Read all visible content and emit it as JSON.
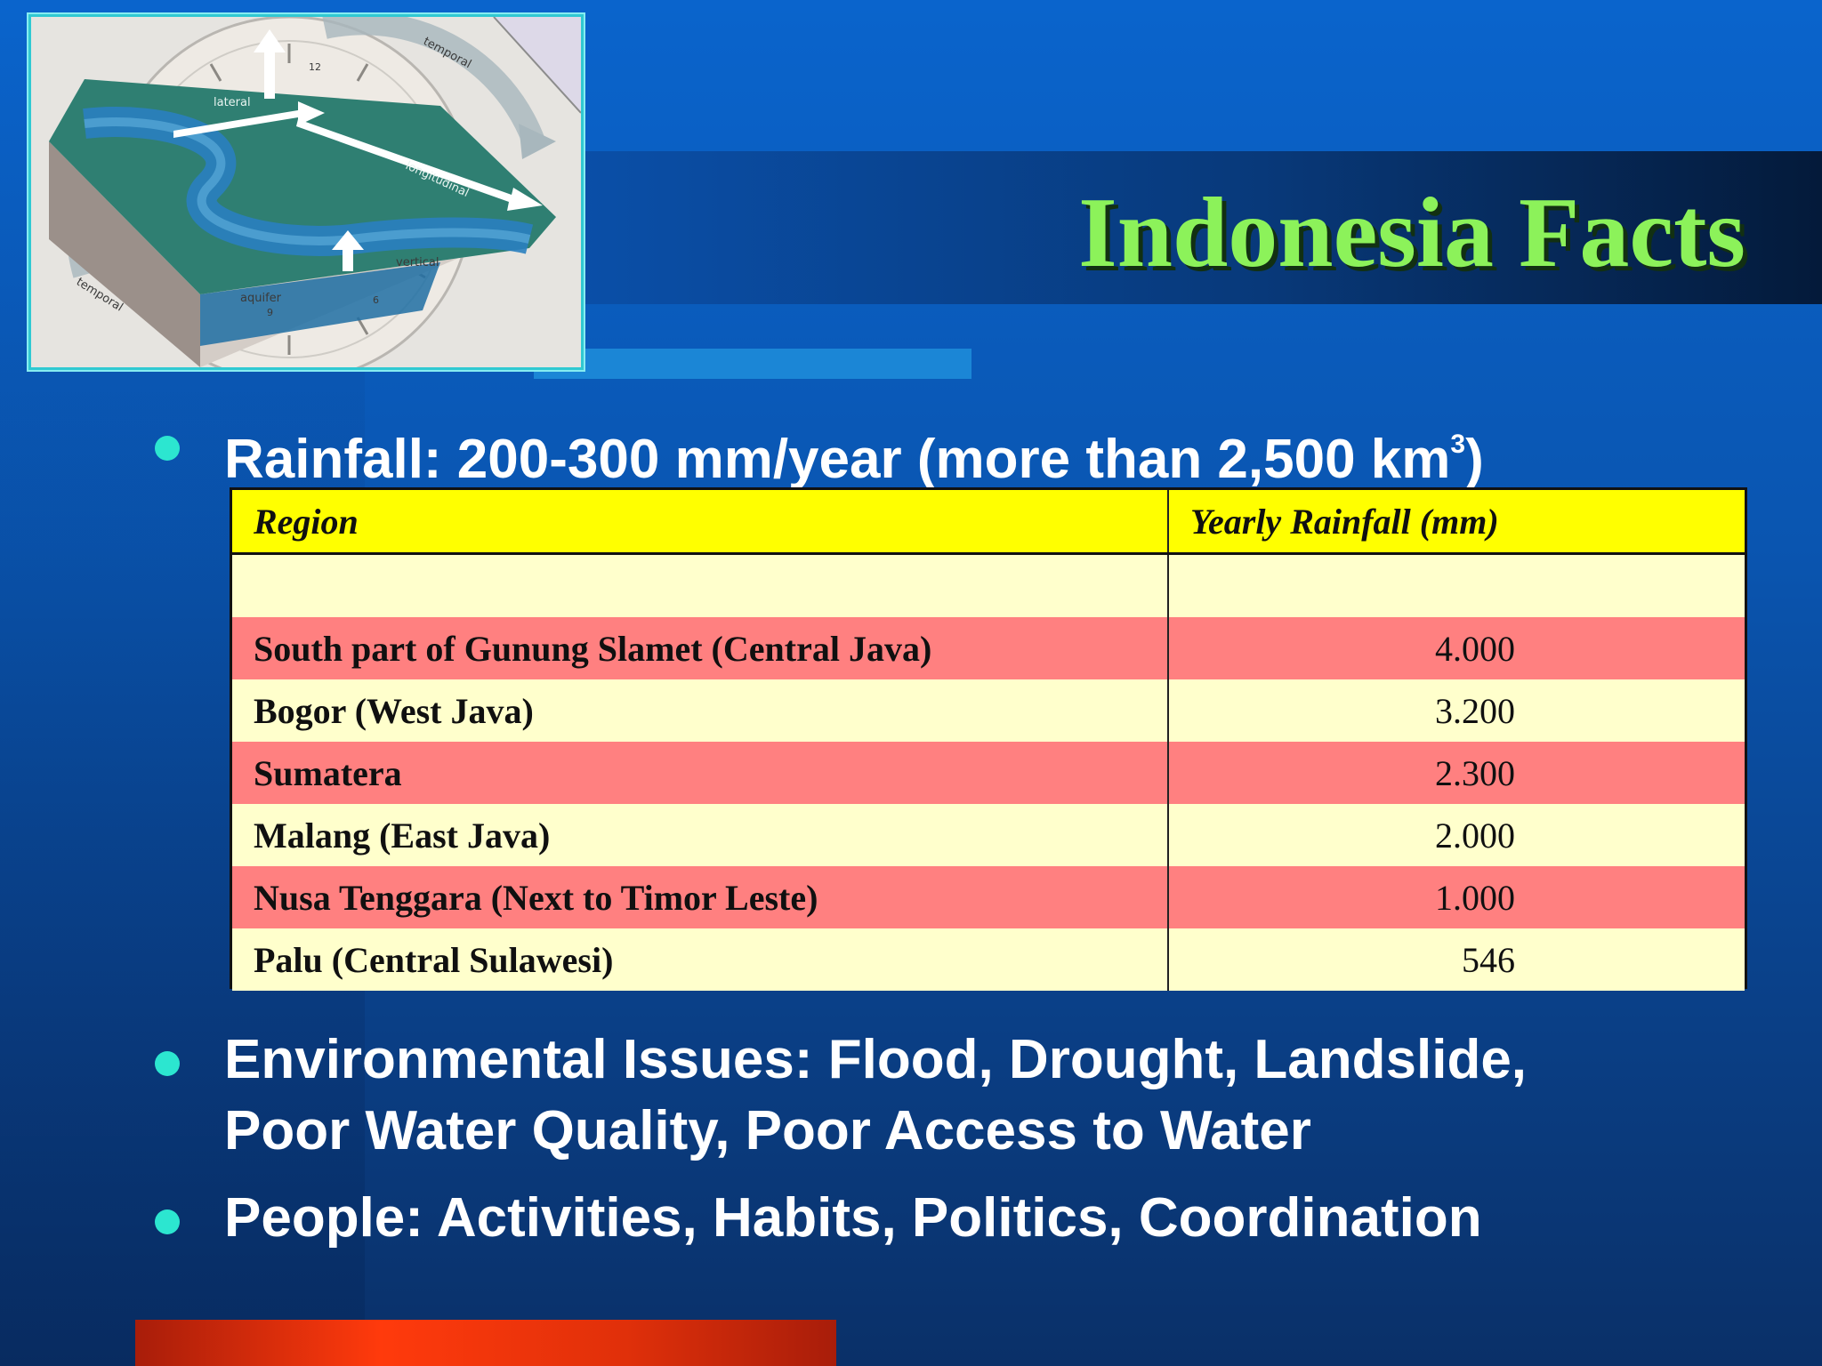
{
  "slide": {
    "title": "Indonesia Facts",
    "colors": {
      "title_green": "#8cf25a",
      "bullet_cyan": "#2ce6d0",
      "header_yellow": "#ffff00",
      "row_pink": "#ff8080",
      "row_cream": "#ffffcc"
    }
  },
  "picture": {
    "labels": {
      "temporal_top": "temporal",
      "lateral": "lateral",
      "longitudinal": "longitudinal",
      "vertical": "vertical",
      "aquifer": "aquifer",
      "temporal_bottom": "temporal",
      "clock_12": "12",
      "clock_9": "9",
      "clock_6": "6"
    }
  },
  "bullets": {
    "rainfall_prefix": "Rainfall: 200-300 mm/year (more than 2,500 km",
    "rainfall_sup": "3",
    "rainfall_suffix": ")",
    "environmental_line1": "Environmental Issues: Flood, Drought, Landslide,",
    "environmental_line2": "Poor Water Quality, Poor Access to Water",
    "people": "People: Activities, Habits, Politics, Coordination"
  },
  "rainfall_table": {
    "header_region": "Region",
    "header_rainfall": "Yearly Rainfall (mm)",
    "rows": [
      {
        "region": "South part of Gunung Slamet (Central Java)",
        "rainfall": "4.000"
      },
      {
        "region": "Bogor (West Java)",
        "rainfall": "3.200"
      },
      {
        "region": "Sumatera",
        "rainfall": "2.300"
      },
      {
        "region": "Malang (East Java)",
        "rainfall": "2.000"
      },
      {
        "region": "Nusa Tenggara (Next to Timor Leste)",
        "rainfall": "1.000"
      },
      {
        "region": "Palu (Central Sulawesi)",
        "rainfall": "546"
      }
    ]
  }
}
